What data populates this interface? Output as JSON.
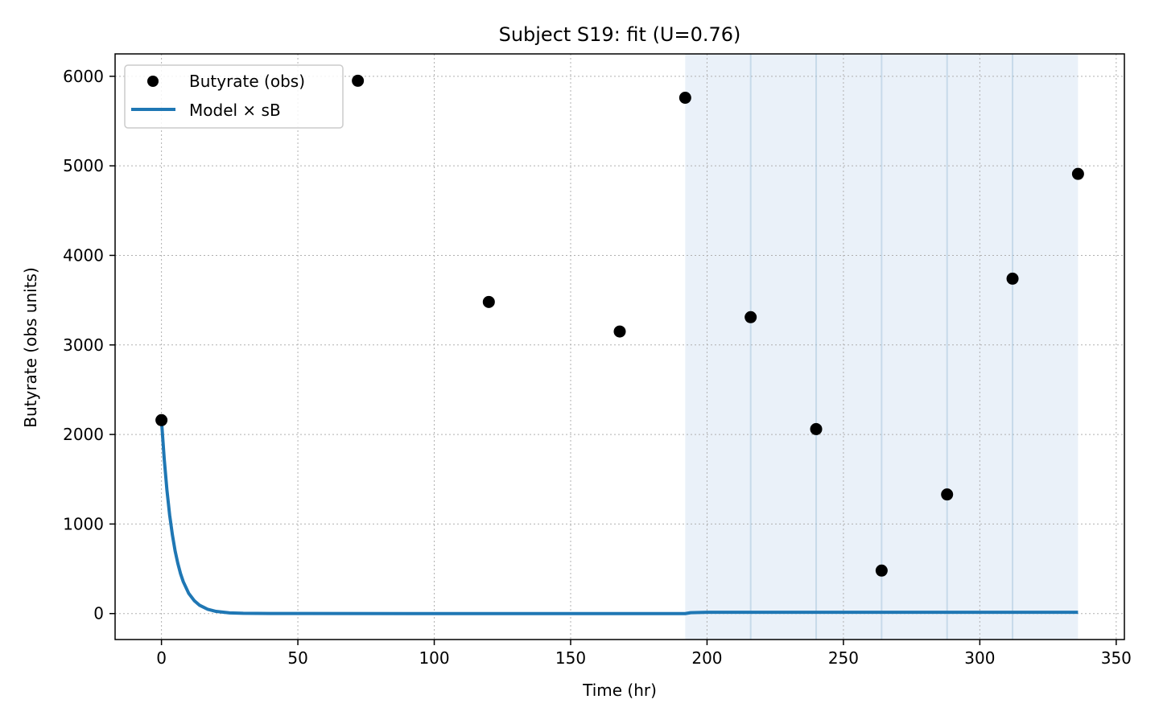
{
  "chart_data": {
    "type": "scatter",
    "title": "Subject S19: fit (U=0.76)",
    "xlabel": "Time (hr)",
    "ylabel": "Butyrate (obs units)",
    "xlim": [
      -17,
      353
    ],
    "ylim": [
      -290,
      6250
    ],
    "xticks": [
      0,
      50,
      100,
      150,
      200,
      250,
      300,
      350
    ],
    "yticks": [
      0,
      1000,
      2000,
      3000,
      4000,
      5000,
      6000
    ],
    "grid": true,
    "legend_position": "top-left",
    "shaded_region": {
      "x_start": 192,
      "x_end": 336,
      "color": "#dce8f5"
    },
    "vertical_lines": [
      216,
      240,
      264,
      288,
      312
    ],
    "series": [
      {
        "name": "Butyrate (obs)",
        "kind": "scatter",
        "color": "#000000",
        "points": [
          {
            "x": 0,
            "y": 2160
          },
          {
            "x": 72,
            "y": 5950
          },
          {
            "x": 120,
            "y": 3480
          },
          {
            "x": 168,
            "y": 3150
          },
          {
            "x": 192,
            "y": 5760
          },
          {
            "x": 216,
            "y": 3310
          },
          {
            "x": 240,
            "y": 2060
          },
          {
            "x": 264,
            "y": 480
          },
          {
            "x": 288,
            "y": 1330
          },
          {
            "x": 312,
            "y": 3740
          },
          {
            "x": 336,
            "y": 4910
          }
        ]
      },
      {
        "name": "Model × sB",
        "kind": "line",
        "color": "#1f77b4",
        "points": [
          {
            "x": 0,
            "y": 2160
          },
          {
            "x": 1,
            "y": 1730
          },
          {
            "x": 2,
            "y": 1380
          },
          {
            "x": 3,
            "y": 1100
          },
          {
            "x": 4,
            "y": 880
          },
          {
            "x": 5,
            "y": 700
          },
          {
            "x": 6,
            "y": 560
          },
          {
            "x": 7,
            "y": 445
          },
          {
            "x": 8,
            "y": 355
          },
          {
            "x": 10,
            "y": 225
          },
          {
            "x": 12,
            "y": 145
          },
          {
            "x": 14,
            "y": 92
          },
          {
            "x": 17,
            "y": 47
          },
          {
            "x": 20,
            "y": 24
          },
          {
            "x": 25,
            "y": 8
          },
          {
            "x": 30,
            "y": 3
          },
          {
            "x": 40,
            "y": 1
          },
          {
            "x": 100,
            "y": 0
          },
          {
            "x": 192,
            "y": 0
          },
          {
            "x": 194,
            "y": 10
          },
          {
            "x": 200,
            "y": 14
          },
          {
            "x": 336,
            "y": 14
          }
        ]
      }
    ]
  }
}
